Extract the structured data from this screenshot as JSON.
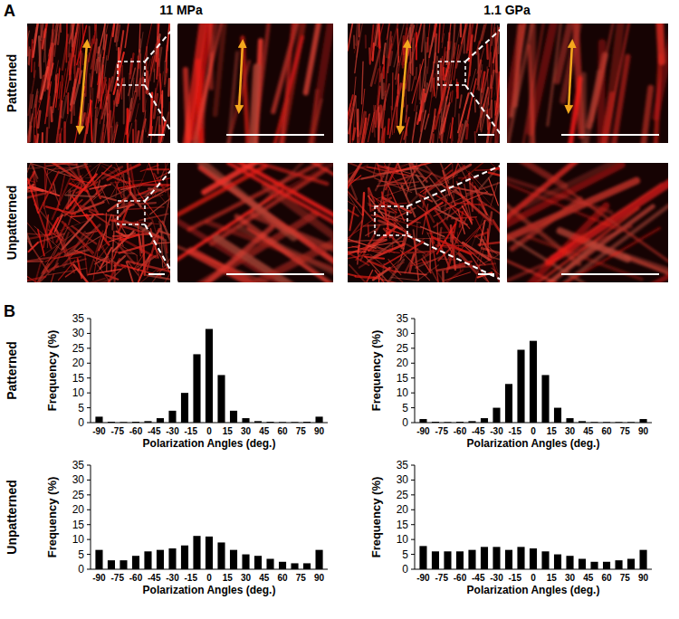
{
  "panel_labels": [
    "A",
    "B"
  ],
  "columns": [
    "11 MPa",
    "1.1 GPa"
  ],
  "rows": [
    "Patterned",
    "Unpatterned"
  ],
  "chart_data": [
    {
      "type": "bar",
      "x": [
        -90,
        -80,
        -70,
        -60,
        -50,
        -40,
        -30,
        -20,
        -10,
        0,
        10,
        20,
        30,
        40,
        50,
        60,
        70,
        80,
        90
      ],
      "values": [
        2,
        0.3,
        0.2,
        0.3,
        0.5,
        1.5,
        4,
        10,
        23,
        31.5,
        16,
        4,
        1.5,
        0.5,
        0.3,
        0.2,
        0.2,
        0.3,
        2
      ],
      "color": "#000000",
      "xlim": [
        -97,
        97
      ],
      "ylim": [
        0,
        35
      ],
      "xticks": [
        -90,
        -75,
        -60,
        -45,
        -30,
        -15,
        0,
        15,
        30,
        45,
        60,
        75,
        90
      ],
      "yticks": [
        0,
        5,
        10,
        15,
        20,
        25,
        30,
        35
      ],
      "xlabel": "Polarization Angles (deg.)",
      "ylabel": "Frequency (%)",
      "grid": false
    },
    {
      "type": "bar",
      "x": [
        -90,
        -80,
        -70,
        -60,
        -50,
        -40,
        -30,
        -20,
        -10,
        0,
        10,
        20,
        30,
        40,
        50,
        60,
        70,
        80,
        90
      ],
      "values": [
        1.2,
        0.3,
        0.2,
        0.3,
        0.5,
        1.5,
        5,
        13,
        24.5,
        27.5,
        16,
        5,
        1.5,
        0.5,
        0.2,
        0.2,
        0.2,
        0.2,
        1.2
      ],
      "color": "#000000",
      "xlim": [
        -97,
        97
      ],
      "ylim": [
        0,
        35
      ],
      "xticks": [
        -90,
        -75,
        -60,
        -45,
        -30,
        -15,
        0,
        15,
        30,
        45,
        60,
        75,
        90
      ],
      "yticks": [
        0,
        5,
        10,
        15,
        20,
        25,
        30,
        35
      ],
      "xlabel": "Polarization Angles (deg.)",
      "ylabel": "Frequency (%)",
      "grid": false
    },
    {
      "type": "bar",
      "x": [
        -90,
        -80,
        -70,
        -60,
        -50,
        -40,
        -30,
        -20,
        -10,
        0,
        10,
        20,
        30,
        40,
        50,
        60,
        70,
        80,
        90
      ],
      "values": [
        6.5,
        3,
        3,
        4.5,
        6,
        6.5,
        7,
        8,
        11.2,
        11,
        9,
        6.5,
        5,
        4.5,
        3.5,
        2.5,
        2,
        2,
        6.5
      ],
      "color": "#000000",
      "xlim": [
        -97,
        97
      ],
      "ylim": [
        0,
        35
      ],
      "xticks": [
        -90,
        -75,
        -60,
        -45,
        -30,
        -15,
        0,
        15,
        30,
        45,
        60,
        75,
        90
      ],
      "yticks": [
        0,
        5,
        10,
        15,
        20,
        25,
        30,
        35
      ],
      "xlabel": "Polarization Angles (deg.)",
      "ylabel": "Frequency (%)",
      "grid": false
    },
    {
      "type": "bar",
      "x": [
        -90,
        -80,
        -70,
        -60,
        -50,
        -40,
        -30,
        -20,
        -10,
        0,
        10,
        20,
        30,
        40,
        50,
        60,
        70,
        80,
        90
      ],
      "values": [
        7.8,
        6,
        6,
        6,
        6.5,
        7.5,
        7.5,
        6.5,
        7.5,
        7,
        6,
        5,
        4.5,
        3.5,
        2.5,
        2.5,
        3,
        3.5,
        6.5
      ],
      "color": "#000000",
      "xlim": [
        -97,
        97
      ],
      "ylim": [
        0,
        35
      ],
      "xticks": [
        -90,
        -75,
        -60,
        -45,
        -30,
        -15,
        0,
        15,
        30,
        45,
        60,
        75,
        90
      ],
      "yticks": [
        0,
        5,
        10,
        15,
        20,
        25,
        30,
        35
      ],
      "xlabel": "Polarization Angles (deg.)",
      "ylabel": "Frequency (%)",
      "grid": false
    }
  ]
}
